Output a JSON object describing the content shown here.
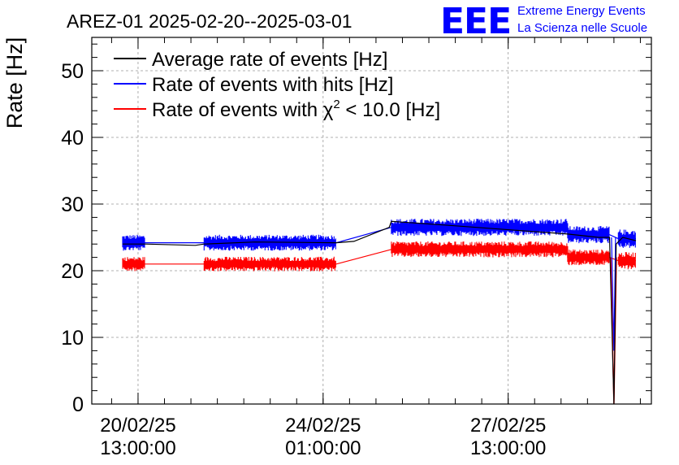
{
  "chart_data": {
    "type": "line",
    "title": "AREZ-01 2025-02-20--2025-03-01",
    "ylabel": "Rate [Hz]",
    "xlabel": "",
    "ylim": [
      0,
      55
    ],
    "xlim": [
      "2025-02-19 16:00:00",
      "2025-03-02 06:00:00"
    ],
    "yticks": [
      0,
      10,
      20,
      30,
      40,
      50
    ],
    "xticks": [
      {
        "at": "2025-02-20 13:00:00",
        "line1": "20/02/25",
        "line2": "13:00:00"
      },
      {
        "at": "2025-02-24 01:00:00",
        "line1": "24/02/25",
        "line2": "01:00:00"
      },
      {
        "at": "2025-02-27 13:00:00",
        "line1": "27/02/25",
        "line2": "13:00:00"
      }
    ],
    "grid": true,
    "legend_position": "top-left",
    "legend_chi_symbol": "χ",
    "legend_chi_exponent": "2",
    "series": [
      {
        "name": "Average rate of events [Hz]",
        "color": "#000000",
        "points": [
          [
            "2025-02-20 06:00",
            24.0
          ],
          [
            "2025-02-20 16:00",
            24.0
          ],
          [
            "2025-02-21 15:00",
            23.8
          ],
          [
            "2025-02-21 19:00",
            24.0
          ],
          [
            "2025-02-22 18:00",
            24.3
          ],
          [
            "2025-02-24 07:00",
            24.2
          ],
          [
            "2025-02-24 15:00",
            24.4
          ],
          [
            "2025-02-25 07:00",
            26.5
          ],
          [
            "2025-02-25 08:00",
            27.4
          ],
          [
            "2025-02-26 10:00",
            26.8
          ],
          [
            "2025-02-28 16:00",
            25.5
          ],
          [
            "2025-03-01 06:00",
            25.0
          ],
          [
            "2025-03-01 11:00",
            25.0
          ],
          [
            "2025-03-01 13:00",
            0.0
          ],
          [
            "2025-03-01 14:00",
            24.0
          ],
          [
            "2025-03-01 17:00",
            25.0
          ],
          [
            "2025-03-01 23:00",
            24.5
          ]
        ]
      },
      {
        "name": "Rate of events with hits [Hz]",
        "color": "#0000ff",
        "bands": [
          {
            "start": "2025-02-20 06:00",
            "end": "2025-02-20 16:00",
            "center": 24.2,
            "spread": 1.2
          },
          {
            "start": "2025-02-21 19:00",
            "end": "2025-02-24 07:00",
            "center": 24.2,
            "spread": 1.2
          },
          {
            "start": "2025-02-25 08:00",
            "end": "2025-02-28 16:00",
            "center": 26.5,
            "spread": 1.3
          },
          {
            "start": "2025-02-28 16:00",
            "end": "2025-03-01 11:00",
            "center": 25.4,
            "spread": 1.3
          },
          {
            "start": "2025-03-01 15:00",
            "end": "2025-03-01 23:00",
            "center": 24.8,
            "spread": 1.4
          }
        ]
      },
      {
        "name": "Rate of events with χ2 < 10.0 [Hz]",
        "color": "#ff0000",
        "bands": [
          {
            "start": "2025-02-20 06:00",
            "end": "2025-02-20 16:00",
            "center": 21.0,
            "spread": 1.1
          },
          {
            "start": "2025-02-21 19:00",
            "end": "2025-02-24 07:00",
            "center": 21.0,
            "spread": 1.1
          },
          {
            "start": "2025-02-25 08:00",
            "end": "2025-02-28 16:00",
            "center": 23.2,
            "spread": 1.2
          },
          {
            "start": "2025-02-28 16:00",
            "end": "2025-03-01 11:00",
            "center": 22.0,
            "spread": 1.2
          },
          {
            "start": "2025-03-01 15:00",
            "end": "2025-03-01 23:00",
            "center": 21.5,
            "spread": 1.3
          }
        ]
      }
    ]
  },
  "logo": {
    "mark": "EEE",
    "line1": "Extreme Energy Events",
    "line2": "La Scienza nelle Scuole",
    "color": "#0000ff"
  }
}
